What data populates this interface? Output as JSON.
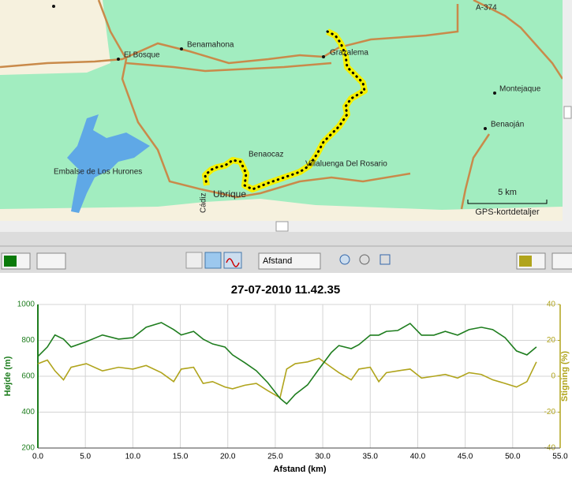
{
  "map": {
    "road": "A-374",
    "labels": [
      "Benamahona",
      "El Bosque",
      "Grazalema",
      "Montejaque",
      "Benaoján",
      "Benaocaz",
      "Villaluenga Del Rosario",
      "Embalse de Los Hurones",
      "Ubrique",
      "Cádiz"
    ],
    "scale": "5 km",
    "attribution": "GPS-kortdetaljer"
  },
  "toolbar": {
    "measure": "Afstand"
  },
  "chart_data": {
    "type": "line",
    "title": "27-07-2010 11.42.35",
    "x_label": "Afstand (km)",
    "y_label": "Højde (m)",
    "y2_label": "Stigning (%)",
    "x": [
      0,
      1,
      1.8,
      2.7,
      3.5,
      5.1,
      6.8,
      8.5,
      10,
      11.4,
      13,
      14.3,
      15.1,
      16.4,
      17.4,
      18.4,
      19.7,
      20.5,
      21.8,
      23,
      24.2,
      25.5,
      26.2,
      27.1,
      28.4,
      29.6,
      30.9,
      31.7,
      33,
      33.8,
      35,
      35.9,
      36.7,
      37.9,
      39.2,
      40.4,
      41.7,
      42.9,
      44.2,
      45.4,
      46.7,
      47.9,
      49.2,
      50.4,
      51.5,
      52.5
    ],
    "series": [
      {
        "color": "#1e7d1e",
        "values": [
          710,
          763,
          830,
          807,
          763,
          793,
          830,
          807,
          815,
          873,
          899,
          860,
          830,
          850,
          807,
          780,
          763,
          719,
          675,
          631,
          565,
          477,
          446,
          499,
          552,
          640,
          732,
          771,
          754,
          776,
          829,
          829,
          850,
          855,
          894,
          829,
          829,
          850,
          829,
          860,
          873,
          860,
          815,
          741,
          719,
          763
        ]
      },
      {
        "color": "#b0a41c",
        "axis": "y2",
        "values": [
          7,
          9,
          3,
          -2,
          5,
          7,
          3,
          5,
          4,
          6,
          2,
          -3,
          4,
          5,
          -4,
          -3,
          -6,
          -7,
          -5,
          -4,
          -8,
          -12,
          4,
          7,
          8,
          10,
          5,
          2,
          -2,
          4,
          5,
          -3,
          2,
          3,
          4,
          -1,
          0,
          1,
          -1,
          2,
          1,
          -2,
          -4,
          -6,
          -3,
          8
        ]
      }
    ],
    "xlim": [
      0,
      55
    ],
    "xticks": [
      {
        "value": 0,
        "label": "0.0"
      },
      {
        "value": 5,
        "label": "5.0"
      },
      {
        "value": 10,
        "label": "10.0"
      },
      {
        "value": 15,
        "label": "15.0"
      },
      {
        "value": 20,
        "label": "20.0"
      },
      {
        "value": 25,
        "label": "25.0"
      },
      {
        "value": 30,
        "label": "30.0"
      },
      {
        "value": 35,
        "label": "35.0"
      },
      {
        "value": 40,
        "label": "40.0"
      },
      {
        "value": 45,
        "label": "45.0"
      },
      {
        "value": 50,
        "label": "50.0"
      },
      {
        "value": 55,
        "label": "55.0"
      }
    ],
    "ylim": [
      200,
      1000
    ],
    "yticks": [
      200,
      400,
      600,
      800,
      1000
    ],
    "y2lim": [
      -40,
      40
    ],
    "y2ticks": [
      -40,
      -20,
      0,
      20,
      40
    ],
    "grid": true
  }
}
